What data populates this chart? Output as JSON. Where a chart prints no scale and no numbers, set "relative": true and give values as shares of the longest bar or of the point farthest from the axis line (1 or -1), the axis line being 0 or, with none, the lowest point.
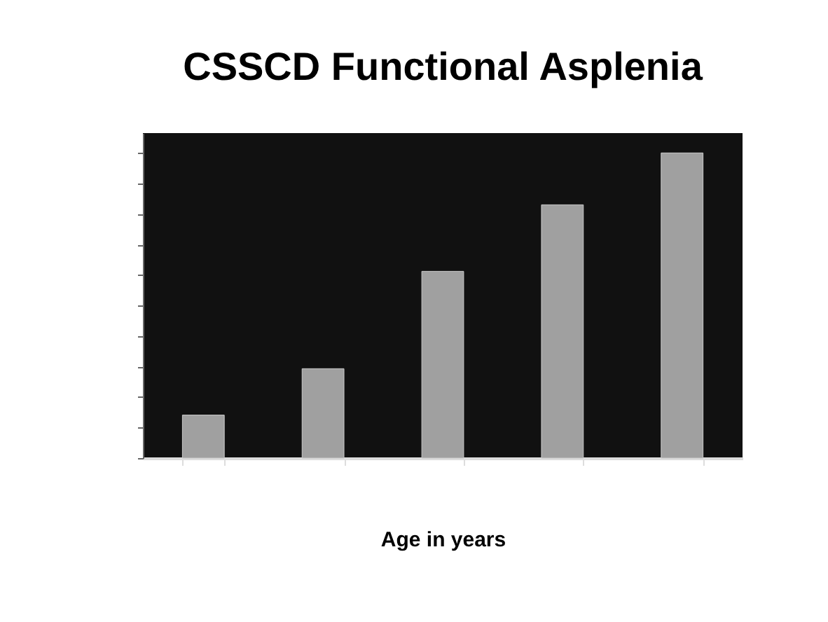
{
  "chart_data": {
    "type": "bar",
    "title": "CSSCD Functional Asplenia",
    "xlabel": "Age in years",
    "categories": [
      null,
      null,
      null,
      null,
      null
    ],
    "values": [
      0.141,
      0.293,
      0.612,
      0.83,
      1
    ],
    "color": "#a0a0a0",
    "relative": true,
    "grid": false
  }
}
